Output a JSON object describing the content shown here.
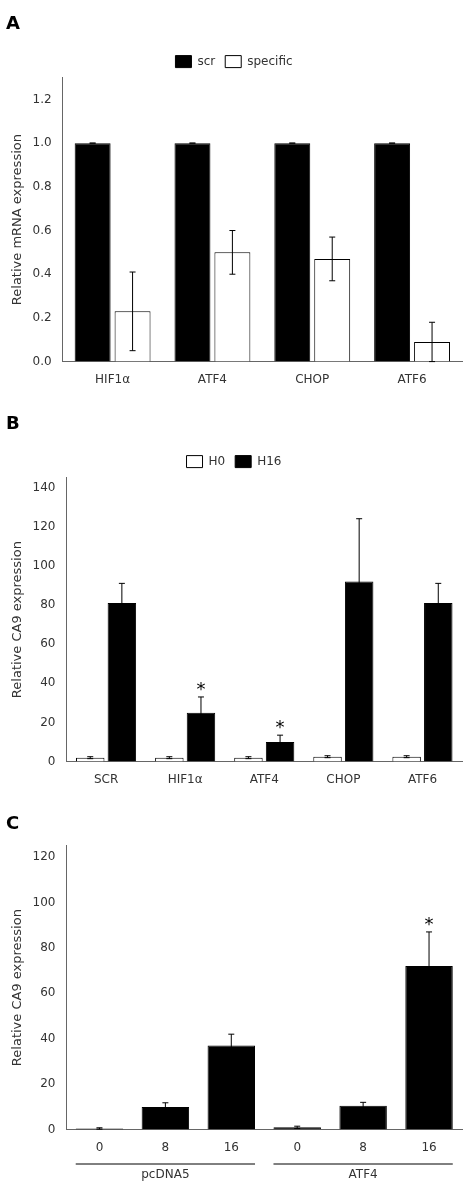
{
  "chart_data": [
    {
      "type": "bar",
      "title": "A",
      "categories": [
        "HIF1α",
        "ATF4",
        "CHOP",
        "ATF6"
      ],
      "series": [
        {
          "name": "scr",
          "color": "#000000",
          "values": [
            1.0,
            1.0,
            1.0,
            1.0
          ],
          "errors": [
            0.0,
            0.0,
            0.0,
            0.0
          ]
        },
        {
          "name": "specific",
          "color": "#ffffff",
          "values": [
            0.23,
            0.5,
            0.47,
            0.09
          ],
          "errors": [
            0.18,
            0.1,
            0.1,
            0.09
          ]
        }
      ],
      "ylabel": "Relative mRNA expression",
      "ylim": [
        0,
        1.3
      ],
      "yticks": [
        {
          "value": 0.0,
          "label": "0.0"
        },
        {
          "value": 0.2,
          "label": "0.2"
        },
        {
          "value": 0.4,
          "label": "0.4"
        },
        {
          "value": 0.6,
          "label": "0.6"
        },
        {
          "value": 0.8,
          "label": "0.8"
        },
        {
          "value": 1.0,
          "label": "1.0"
        },
        {
          "value": 1.2,
          "label": "1.2"
        }
      ],
      "legend": "top",
      "grid": false
    },
    {
      "type": "bar",
      "title": "B",
      "categories": [
        "SCR",
        "HIF1α",
        "ATF4",
        "CHOP",
        "ATF6"
      ],
      "series": [
        {
          "name": "H0",
          "color": "#ffffff",
          "values": [
            2.0,
            2.0,
            2.0,
            2.5,
            2.5
          ],
          "errors": [
            0.5,
            0.5,
            0.5,
            0.5,
            0.5
          ]
        },
        {
          "name": "H16",
          "color": "#000000",
          "values": [
            81.0,
            25.0,
            10.0,
            92.0,
            81.0
          ],
          "errors": [
            10.0,
            8.0,
            3.5,
            32.0,
            10.0
          ]
        }
      ],
      "ylabel": "Relative CA9 expression",
      "ylim": [
        0,
        145
      ],
      "yticks": [
        0,
        20,
        40,
        60,
        80,
        100,
        120,
        140
      ],
      "annotations": [
        {
          "text": "*",
          "series": "H16",
          "index": 1
        },
        {
          "text": "*",
          "series": "H16",
          "index": 2
        }
      ],
      "legend": "top",
      "grid": false
    },
    {
      "type": "bar",
      "title": "C",
      "categories": [
        "0",
        "8",
        "16",
        "0",
        "8",
        "16"
      ],
      "values": [
        0.5,
        10.0,
        37.0,
        1.0,
        10.5,
        72.0
      ],
      "errors": [
        0.3,
        1.8,
        5.0,
        0.5,
        1.5,
        15.0
      ],
      "color": "#000000",
      "groups": [
        {
          "label": "pcDNA5",
          "first": 0,
          "last": 2
        },
        {
          "label": "ATF4",
          "first": 3,
          "last": 5
        }
      ],
      "ylabel": "Relative CA9 expression",
      "ylim": [
        0,
        125
      ],
      "yticks": [
        0,
        20,
        40,
        60,
        80,
        100,
        120
      ],
      "annotations": [
        {
          "text": "*",
          "index": 5
        }
      ],
      "grid": false
    }
  ]
}
